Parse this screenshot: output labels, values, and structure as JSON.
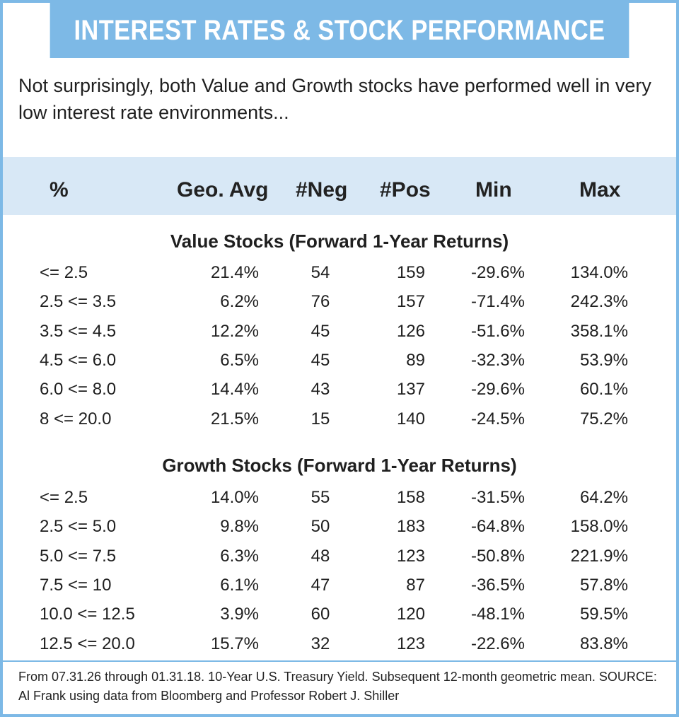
{
  "banner_title": "INTEREST RATES & STOCK PERFORMANCE",
  "intro": "Not surprisingly, both Value and Growth stocks have performed well in very low interest rate environments...",
  "columns": [
    "%",
    "Geo. Avg",
    "#Neg",
    "#Pos",
    "Min",
    "Max"
  ],
  "sections": [
    {
      "title": "Value Stocks (Forward 1-Year Returns)",
      "rows": [
        [
          "<= 2.5",
          "21.4%",
          "54",
          "159",
          "-29.6%",
          "134.0%"
        ],
        [
          "2.5 <= 3.5",
          "6.2%",
          "76",
          "157",
          "-71.4%",
          "242.3%"
        ],
        [
          "3.5 <= 4.5",
          "12.2%",
          "45",
          "126",
          "-51.6%",
          "358.1%"
        ],
        [
          "4.5 <= 6.0",
          "6.5%",
          "45",
          "89",
          "-32.3%",
          "53.9%"
        ],
        [
          "6.0 <= 8.0",
          "14.4%",
          "43",
          "137",
          "-29.6%",
          "60.1%"
        ],
        [
          "8 <= 20.0",
          "21.5%",
          "15",
          "140",
          "-24.5%",
          "75.2%"
        ]
      ]
    },
    {
      "title": "Growth Stocks (Forward 1-Year Returns)",
      "rows": [
        [
          "<= 2.5",
          "14.0%",
          "55",
          "158",
          "-31.5%",
          "64.2%"
        ],
        [
          "2.5 <= 5.0",
          "9.8%",
          "50",
          "183",
          "-64.8%",
          "158.0%"
        ],
        [
          "5.0 <= 7.5",
          "6.3%",
          "48",
          "123",
          "-50.8%",
          "221.9%"
        ],
        [
          "7.5 <= 10",
          "6.1%",
          "47",
          "87",
          "-36.5%",
          "57.8%"
        ],
        [
          "10.0 <= 12.5",
          "3.9%",
          "60",
          "120",
          "-48.1%",
          "59.5%"
        ],
        [
          "12.5 <= 20.0",
          "15.7%",
          "32",
          "123",
          "-22.6%",
          "83.8%"
        ]
      ]
    }
  ],
  "footnote": "From 07.31.26 through 01.31.18. 10-Year U.S. Treasury Yield. Subsequent 12-month geometric mean. SOURCE: Al Frank using data from Bloomberg and Professor Robert J. Shiller",
  "colors": {
    "accent": "#7db9e6",
    "header_band": "#d8e8f6",
    "text": "#1f1f1f"
  }
}
